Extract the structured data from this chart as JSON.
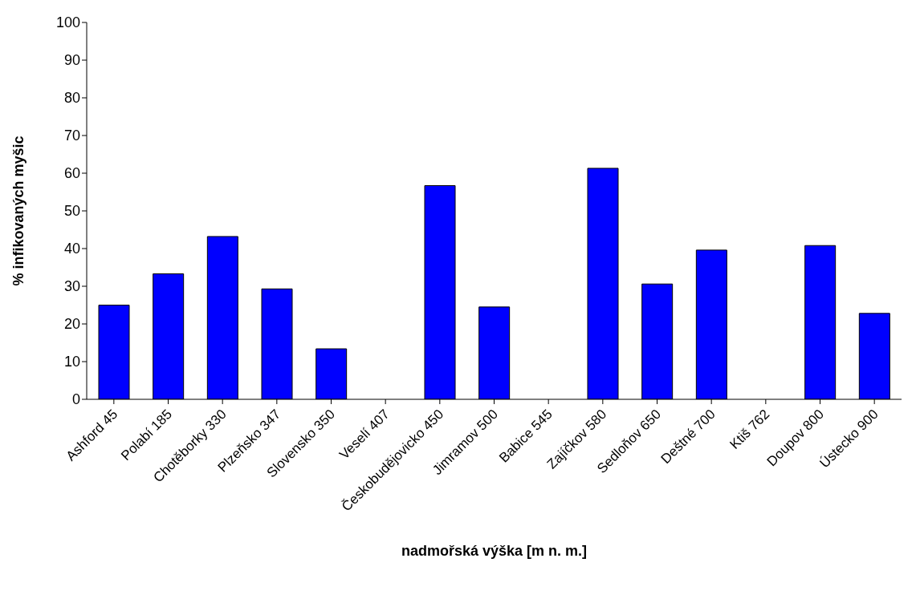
{
  "chart_data": {
    "type": "bar",
    "xlabel": "nadmořská výška [m n. m.]",
    "ylabel": "% infikovaných myšic",
    "categories": [
      "Ashford 45",
      "Polabí 185",
      "Chotěborky 330",
      "Plzeňsko 347",
      "Slovensko 350",
      "Veselí 407",
      "Českobudějovicko 450",
      "Jimramov 500",
      "Babice 545",
      "Zajíčkov 580",
      "Sedloňov 650",
      "Deštné 700",
      "Ktiš 762",
      "Doupov 800",
      "Ústecko 900"
    ],
    "values": [
      25,
      33.3,
      43.2,
      29.3,
      13.4,
      0,
      56.7,
      24.5,
      0,
      61.3,
      30.6,
      39.6,
      0,
      40.8,
      22.8
    ],
    "color": "#0000ff",
    "ylim": [
      0,
      100
    ],
    "yticks": [
      0,
      10,
      20,
      30,
      40,
      50,
      60,
      70,
      80,
      90,
      100
    ],
    "grid": false,
    "legend": false
  }
}
